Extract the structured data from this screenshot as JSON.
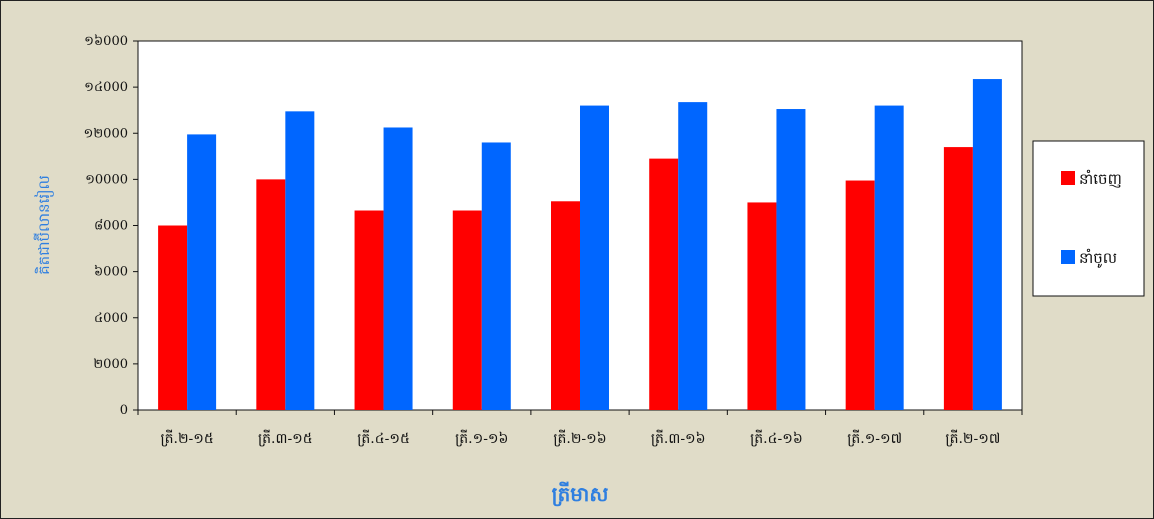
{
  "chart_data": {
    "type": "bar",
    "categories": [
      "ត្រី.២-១៥",
      "ត្រី.៣-១៥",
      "ត្រី.៤-១៥",
      "ត្រី.១-១៦",
      "ត្រី.២-១៦",
      "ត្រី.៣-១៦",
      "ត្រី.៤-១៦",
      "ត្រី.១-១៧",
      "ត្រី.២-១៧"
    ],
    "series": [
      {
        "name": "នាំចេញ",
        "color": "#ff0000",
        "values": [
          8000,
          10000,
          8650,
          8650,
          9050,
          10900,
          9000,
          9950,
          11400
        ]
      },
      {
        "name": "នាំចូល",
        "color": "#0066ff",
        "values": [
          11950,
          12950,
          12250,
          11600,
          13200,
          13350,
          13050,
          13200,
          14350
        ]
      }
    ],
    "xlabel": "ត្រីមាស",
    "ylabel": "គិតជាប៊ីលានរៀល",
    "ylim": [
      0,
      16000
    ],
    "yticks": [
      0,
      2000,
      4000,
      6000,
      8000,
      10000,
      12000,
      14000,
      16000
    ],
    "ytick_labels": [
      "0",
      "២000",
      "៤000",
      "៦000",
      "៨000",
      "១0000",
      "១២000",
      "១៤000",
      "១៦000"
    ],
    "grid": false,
    "legend_position": "right"
  },
  "colors": {
    "frame_background": "#e0dcc8",
    "plot_background": "#ffffff",
    "axis_title": "#2f7fe0"
  }
}
